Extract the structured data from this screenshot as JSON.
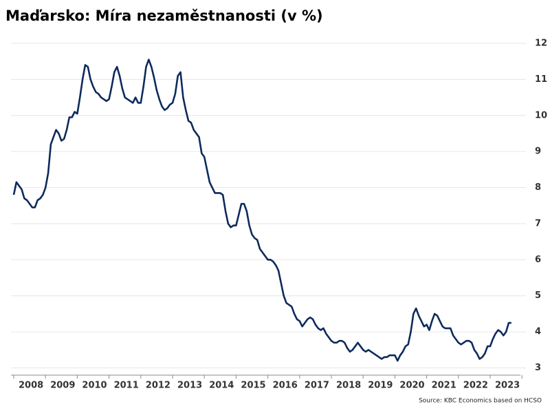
{
  "chart_data": {
    "type": "line",
    "title": "Maďarsko: Míra nezaměstnanosti (v %)",
    "source": "Source: KBC Economics based on HCSO",
    "categories": [
      null,
      null,
      null,
      null,
      null,
      null,
      "2008",
      null,
      null,
      null,
      null,
      null,
      null,
      null,
      null,
      null,
      null,
      null,
      "2009",
      null,
      null,
      null,
      null,
      null,
      null,
      null,
      null,
      null,
      null,
      null,
      "2010",
      null,
      null,
      null,
      null,
      null,
      null,
      null,
      null,
      null,
      null,
      null,
      "2011",
      null,
      null,
      null,
      null,
      null,
      null,
      null,
      null,
      null,
      null,
      null,
      "2012",
      null,
      null,
      null,
      null,
      null,
      null,
      null,
      null,
      null,
      null,
      null,
      "2013",
      null,
      null,
      null,
      null,
      null,
      null,
      null,
      null,
      null,
      null,
      null,
      "2014",
      null,
      null,
      null,
      null,
      null,
      null,
      null,
      null,
      null,
      null,
      null,
      "2015",
      null,
      null,
      null,
      null,
      null,
      null,
      null,
      null,
      null,
      null,
      null,
      "2016",
      null,
      null,
      null,
      null,
      null,
      null,
      null,
      null,
      null,
      null,
      null,
      "2017",
      null,
      null,
      null,
      null,
      null,
      null,
      null,
      null,
      null,
      null,
      null,
      "2018",
      null,
      null,
      null,
      null,
      null,
      null,
      null,
      null,
      null,
      null,
      null,
      "2019",
      null,
      null,
      null,
      null,
      null,
      null,
      null,
      null,
      null,
      null,
      null,
      "2020",
      null,
      null,
      null,
      null,
      null,
      null,
      null,
      null,
      null,
      null,
      null,
      "2021",
      null,
      null,
      null,
      null,
      null,
      null,
      null,
      null,
      null,
      null,
      null,
      "2022",
      null,
      null,
      null,
      null,
      null,
      null,
      null,
      null,
      null,
      null,
      null,
      "2023",
      null,
      null
    ],
    "series": [
      {
        "color": "#0d2a5c",
        "values": [
          7.8,
          8.15,
          8.05,
          7.95,
          7.7,
          7.65,
          7.55,
          7.45,
          7.45,
          7.65,
          7.7,
          7.8,
          8.0,
          8.4,
          9.2,
          9.4,
          9.6,
          9.5,
          9.3,
          9.35,
          9.6,
          9.95,
          9.95,
          10.1,
          10.05,
          10.5,
          11.0,
          11.4,
          11.35,
          11.0,
          10.8,
          10.65,
          10.6,
          10.5,
          10.45,
          10.4,
          10.45,
          10.8,
          11.2,
          11.35,
          11.1,
          10.75,
          10.5,
          10.45,
          10.4,
          10.35,
          10.5,
          10.35,
          10.35,
          10.8,
          11.35,
          11.55,
          11.35,
          11.05,
          10.7,
          10.45,
          10.25,
          10.15,
          10.2,
          10.3,
          10.35,
          10.6,
          11.1,
          11.2,
          10.5,
          10.15,
          9.85,
          9.8,
          9.6,
          9.5,
          9.4,
          8.95,
          8.85,
          8.5,
          8.15,
          8.0,
          7.85,
          7.85,
          7.85,
          7.8,
          7.35,
          7.0,
          6.9,
          6.95,
          6.95,
          7.25,
          7.55,
          7.55,
          7.35,
          6.95,
          6.7,
          6.6,
          6.55,
          6.3,
          6.2,
          6.1,
          6.0,
          6.0,
          5.95,
          5.85,
          5.7,
          5.35,
          5.0,
          4.8,
          4.75,
          4.7,
          4.5,
          4.35,
          4.3,
          4.15,
          4.25,
          4.35,
          4.4,
          4.35,
          4.2,
          4.1,
          4.05,
          4.1,
          3.95,
          3.85,
          3.75,
          3.7,
          3.7,
          3.75,
          3.75,
          3.7,
          3.55,
          3.45,
          3.5,
          3.6,
          3.7,
          3.6,
          3.5,
          3.45,
          3.5,
          3.45,
          3.4,
          3.35,
          3.3,
          3.25,
          3.3,
          3.3,
          3.35,
          3.35,
          3.35,
          3.2,
          3.35,
          3.45,
          3.6,
          3.65,
          4.0,
          4.5,
          4.65,
          4.45,
          4.3,
          4.15,
          4.2,
          4.05,
          4.3,
          4.5,
          4.45,
          4.3,
          4.15,
          4.1,
          4.1,
          4.1,
          3.9,
          3.8,
          3.7,
          3.65,
          3.7,
          3.75,
          3.75,
          3.7,
          3.5,
          3.4,
          3.25,
          3.3,
          3.4,
          3.6,
          3.6,
          3.8,
          3.95,
          4.05,
          4.0,
          3.9,
          4.0,
          4.25,
          4.25
        ]
      }
    ],
    "ylim": [
      2.8,
      12.4
    ],
    "yticks": [
      3,
      4,
      5,
      6,
      7,
      8,
      9,
      10,
      11,
      12
    ],
    "grid": true
  }
}
